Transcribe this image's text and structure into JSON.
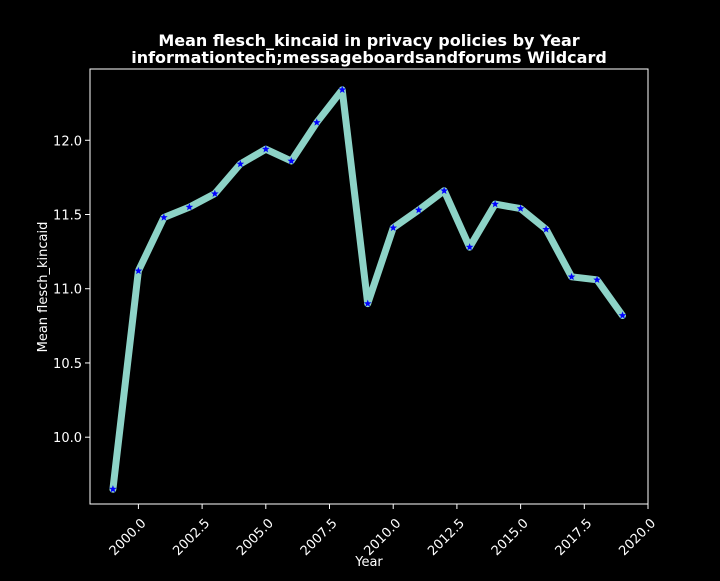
{
  "chart_data": {
    "type": "line",
    "title_line1": "Mean flesch_kincaid in privacy policies by Year",
    "title_line2": "informationtech;messageboardsandforums Wildcard",
    "xlabel": "Year",
    "ylabel": "Mean flesch_kincaid",
    "xlim": [
      1998.1,
      2020.0
    ],
    "ylim": [
      9.55,
      12.48
    ],
    "xticks": [
      2000.0,
      2002.5,
      2005.0,
      2007.5,
      2010.0,
      2012.5,
      2015.0,
      2017.5,
      2020.0
    ],
    "xtick_labels": [
      "2000.0",
      "2002.5",
      "2005.0",
      "2007.5",
      "2010.0",
      "2012.5",
      "2015.0",
      "2017.5",
      "2020.0"
    ],
    "yticks": [
      10.0,
      10.5,
      11.0,
      11.5,
      12.0
    ],
    "ytick_labels": [
      "10.0",
      "10.5",
      "11.0",
      "11.5",
      "12.0"
    ],
    "grid": false,
    "line_color": "#8dd3c7",
    "marker_color": "#0000ff",
    "marker": "star",
    "background": "#000000",
    "series": [
      {
        "x": [
          1999,
          2000,
          2001,
          2002,
          2003,
          2004,
          2005,
          2006,
          2007,
          2008,
          2009,
          2010,
          2011,
          2012,
          2013,
          2014,
          2015,
          2016,
          2017,
          2018,
          2019
        ],
        "values": [
          9.65,
          11.12,
          11.48,
          11.55,
          11.64,
          11.84,
          11.94,
          11.86,
          12.12,
          12.34,
          10.9,
          11.41,
          11.53,
          11.66,
          11.28,
          11.57,
          11.54,
          11.4,
          11.08,
          11.06,
          10.82
        ]
      }
    ]
  }
}
